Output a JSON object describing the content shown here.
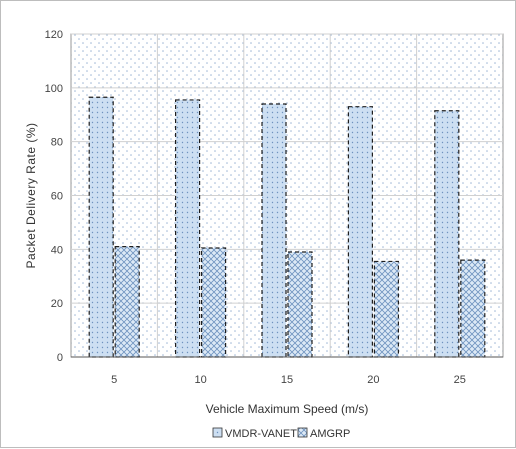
{
  "chart_data": {
    "type": "bar",
    "title": "",
    "xlabel": "Vehicle Maximum Speed (m/s)",
    "ylabel": "Packet Delivery Rate  (%)",
    "categories": [
      "5",
      "10",
      "15",
      "20",
      "25"
    ],
    "series": [
      {
        "name": "VMDR-VANET",
        "values": [
          96.5,
          95.5,
          94,
          93,
          91.5
        ]
      },
      {
        "name": "AMGRP",
        "values": [
          41,
          40.5,
          39,
          35.5,
          36
        ]
      }
    ],
    "ylim": [
      0,
      120
    ],
    "yticks": [
      0,
      20,
      40,
      60,
      80,
      100,
      120
    ],
    "grid": true,
    "legend_position": "bottom-center",
    "colors": {
      "bar_fill": "#c9dbef",
      "bar_stroke": "#1f1f1f",
      "plot_bg": "#eef3fa",
      "grid": "#d0d0d0"
    }
  }
}
